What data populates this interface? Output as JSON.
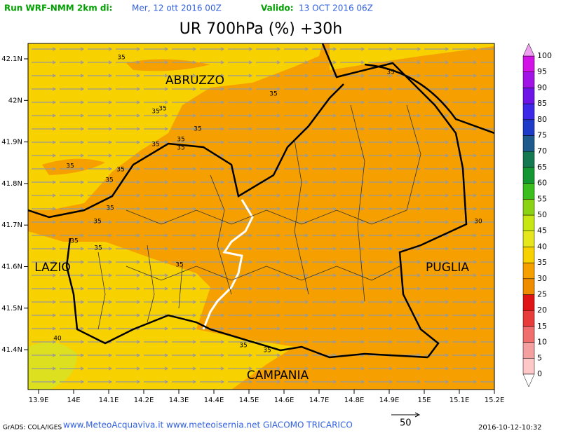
{
  "header": {
    "run_label": "Run WRF-NMM 2km di:",
    "run_date": "Mer, 12 ott 2016 00Z",
    "valid_label": "Valido:",
    "valid_date": "13 OCT 2016 06Z"
  },
  "title": "UR 700hPa (%) +30h",
  "map": {
    "lat_labels": [
      "42.1N",
      "42N",
      "41.9N",
      "41.8N",
      "41.7N",
      "41.6N",
      "41.5N",
      "41.4N"
    ],
    "lon_labels": [
      "13.9E",
      "14E",
      "14.1E",
      "14.2E",
      "14.3E",
      "14.4E",
      "14.5E",
      "14.6E",
      "14.7E",
      "14.8E",
      "14.9E",
      "15E",
      "15.1E",
      "15.2E"
    ],
    "regions": [
      "ABRUZZO",
      "LAZIO",
      "PUGLIA",
      "CAMPANIA"
    ],
    "contour_labels": [
      "35",
      "35",
      "35",
      "35",
      "35",
      "35",
      "35",
      "35",
      "35",
      "35",
      "35",
      "35",
      "35",
      "35",
      "35",
      "35",
      "35",
      "30",
      "40"
    ]
  },
  "colorbar": {
    "levels": [
      0,
      5,
      10,
      15,
      20,
      25,
      30,
      35,
      40,
      45,
      50,
      55,
      60,
      65,
      70,
      75,
      80,
      85,
      90,
      95,
      100
    ],
    "colors": [
      "#ffc8c8",
      "#f5a0a0",
      "#f06e6e",
      "#e83c3c",
      "#e01414",
      "#f08c00",
      "#f5a000",
      "#f8d200",
      "#e6e61e",
      "#c8e614",
      "#8cd214",
      "#3cbe1e",
      "#149632",
      "#147850",
      "#1e5a8c",
      "#1e3cc8",
      "#3c28e6",
      "#6e14e6",
      "#a014e6",
      "#d214e6"
    ]
  },
  "footer": {
    "credits": "GrADS: COLA/IGES",
    "website": "www.MeteoAcquaviva.it www.meteoisernia.net GIACOMO TRICARICO",
    "vector_ref": "50",
    "timestamp": "2016-10-12-10:32"
  }
}
